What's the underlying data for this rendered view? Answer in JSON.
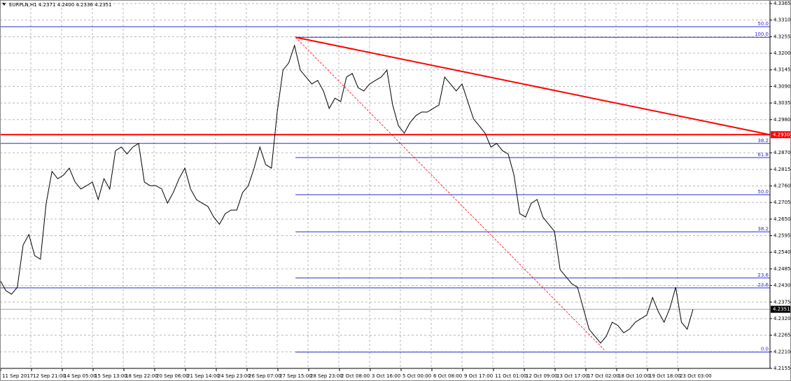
{
  "chart_data": {
    "type": "line",
    "header": "EURPLN,H1  4.2371 4.2400 4.2336 4.2351",
    "x": [
      0,
      6,
      12,
      18,
      24,
      30,
      36,
      42,
      48,
      54,
      60,
      66,
      72,
      78,
      84,
      90,
      96,
      102,
      108,
      114,
      120,
      126,
      132,
      138,
      144,
      150,
      156,
      162,
      168,
      174,
      180,
      186,
      192,
      198,
      204,
      210,
      216,
      222,
      228,
      234,
      240,
      246,
      252,
      258,
      264,
      270,
      276,
      282,
      288,
      294,
      300,
      306,
      312,
      318,
      324,
      330,
      336,
      342,
      348,
      354,
      360,
      366,
      372,
      378,
      384,
      390,
      396,
      402,
      408,
      414,
      420,
      426,
      432,
      438,
      444,
      450,
      456,
      462,
      468,
      474,
      480,
      486,
      492,
      498,
      504,
      510,
      516,
      522,
      528,
      534,
      540,
      546,
      552,
      558,
      564,
      570,
      576,
      582,
      588,
      594,
      600,
      606,
      612,
      618,
      624,
      630,
      636,
      642,
      648,
      654,
      660,
      666,
      672,
      678,
      684,
      690,
      696,
      702,
      708,
      714,
      720
    ],
    "series": [
      {
        "color": "#000000",
        "values": [
          4.2448,
          4.2413,
          4.2401,
          4.2424,
          4.2564,
          4.2599,
          4.2529,
          4.2517,
          4.2703,
          4.2808,
          4.2784,
          4.2796,
          4.2819,
          4.2773,
          4.275,
          4.2761,
          4.2773,
          4.2715,
          4.2784,
          4.275,
          4.2877,
          4.2889,
          4.2866,
          4.2889,
          4.2901,
          4.2773,
          4.2761,
          4.2761,
          4.275,
          4.2703,
          4.2738,
          4.2784,
          4.2819,
          4.275,
          4.2715,
          4.2703,
          4.2692,
          4.2657,
          4.2633,
          4.2668,
          4.268,
          4.268,
          4.2738,
          4.2761,
          4.2819,
          4.2889,
          4.2831,
          4.2819,
          4.3005,
          4.3144,
          4.3168,
          4.3226,
          4.3144,
          4.3121,
          4.3098,
          4.311,
          4.3075,
          4.3017,
          4.3051,
          4.304,
          4.3121,
          4.3133,
          4.3086,
          4.3075,
          4.3098,
          4.311,
          4.3121,
          4.3144,
          4.3028,
          4.2959,
          4.2935,
          4.297,
          4.2993,
          4.3005,
          4.3005,
          4.3017,
          4.3028,
          4.3121,
          4.3098,
          4.3075,
          4.3098,
          4.304,
          4.2982,
          4.2959,
          4.2935,
          4.2889,
          4.2901,
          4.2877,
          4.2866,
          4.2796,
          4.2668,
          4.2657,
          4.2703,
          4.2715,
          4.2657,
          4.2633,
          4.261,
          4.2482,
          4.2459,
          4.2436,
          4.2424,
          4.2355,
          4.2285,
          4.2262,
          4.2239,
          4.2262,
          4.2308,
          4.2297,
          4.2273,
          4.2285,
          4.2308,
          4.232,
          4.2332,
          4.239,
          4.2343,
          4.2308,
          4.2355,
          4.2424,
          4.2308,
          4.2285,
          4.2351
        ]
      }
    ],
    "xlim": [
      0,
      800
    ],
    "ylim": [
      4.2155,
      4.3365
    ],
    "xticks": [
      {
        "value": 0,
        "label": "11 Sep 2017"
      },
      {
        "value": 32,
        "label": "12 Sep 21:00"
      },
      {
        "value": 64,
        "label": "14 Sep 05:00"
      },
      {
        "value": 96,
        "label": "15 Sep 13:00"
      },
      {
        "value": 128,
        "label": "18 Sep 22:00"
      },
      {
        "value": 160,
        "label": "20 Sep 06:00"
      },
      {
        "value": 192,
        "label": "21 Sep 14:00"
      },
      {
        "value": 224,
        "label": "24 Sep 23:00"
      },
      {
        "value": 256,
        "label": "26 Sep 07:00"
      },
      {
        "value": 288,
        "label": "27 Sep 15:00"
      },
      {
        "value": 320,
        "label": "28 Sep 23:00"
      },
      {
        "value": 352,
        "label": "2 Oct 08:00"
      },
      {
        "value": 384,
        "label": "3 Oct 16:00"
      },
      {
        "value": 416,
        "label": "5 Oct 00:00"
      },
      {
        "value": 448,
        "label": "6 Oct 08:00"
      },
      {
        "value": 480,
        "label": "9 Oct 17:00"
      },
      {
        "value": 512,
        "label": "11 Oct 01:00"
      },
      {
        "value": 544,
        "label": "12 Oct 09:00"
      },
      {
        "value": 576,
        "label": "13 Oct 17:00"
      },
      {
        "value": 608,
        "label": "17 Oct 02:00"
      },
      {
        "value": 640,
        "label": "18 Oct 10:00"
      },
      {
        "value": 672,
        "label": "19 Oct 18:00"
      },
      {
        "value": 704,
        "label": "23 Oct 03:00"
      }
    ],
    "yticks": [
      4.3365,
      {
        "value": 4.331,
        "label": "4.3310"
      },
      4.3255,
      {
        "value": 4.32,
        "label": "4.3200"
      },
      4.3145,
      {
        "value": 4.309,
        "label": "4.3090"
      },
      4.3035,
      {
        "value": 4.298,
        "label": "4.2980"
      },
      {
        "value": 4.287,
        "label": "4.2870"
      },
      4.2815,
      {
        "value": 4.276,
        "label": "4.2760"
      },
      4.2705,
      {
        "value": 4.265,
        "label": "4.2650"
      },
      4.2595,
      {
        "value": 4.254,
        "label": "4.2540"
      },
      4.2485,
      {
        "value": 4.243,
        "label": "4.2430"
      },
      4.2375,
      {
        "value": 4.232,
        "label": "4.2320"
      },
      4.2265,
      {
        "value": 4.221,
        "label": "4.2210"
      },
      4.2155
    ],
    "grid": true,
    "levels": [
      {
        "label": "50.0",
        "value": 4.3288,
        "x0": 0
      },
      {
        "label": "100.0",
        "value": 4.3253,
        "x0": 307
      },
      {
        "label": "38.2",
        "value": 4.2901,
        "x0": 0
      },
      {
        "label": "61.8",
        "value": 4.2854,
        "x0": 307
      },
      {
        "label": "50.0",
        "value": 4.2731,
        "x0": 307
      },
      {
        "label": "38.2",
        "value": 4.2608,
        "x0": 307
      },
      {
        "label": "23.6",
        "value": 4.2455,
        "x0": 307
      },
      {
        "label": "23.6",
        "value": 4.2422,
        "x0": 0
      },
      {
        "label": "0.0",
        "value": 4.2209,
        "x0": 307
      }
    ],
    "level_color": "#2b2bd0",
    "hlines": [
      {
        "value": 4.293,
        "label": "4.2930",
        "color": "#ff0000"
      },
      {
        "value": 4.2351,
        "label": "4.2351",
        "color": "#000000"
      }
    ],
    "trendlines": [
      {
        "x": [
          307,
          800
        ],
        "y": [
          4.3253,
          4.293
        ],
        "color": "#ff0000",
        "style": "solid"
      },
      {
        "x": [
          307,
          628
        ],
        "y": [
          4.3253,
          4.2216
        ],
        "color": "#ff0000",
        "style": "dashed"
      }
    ]
  }
}
